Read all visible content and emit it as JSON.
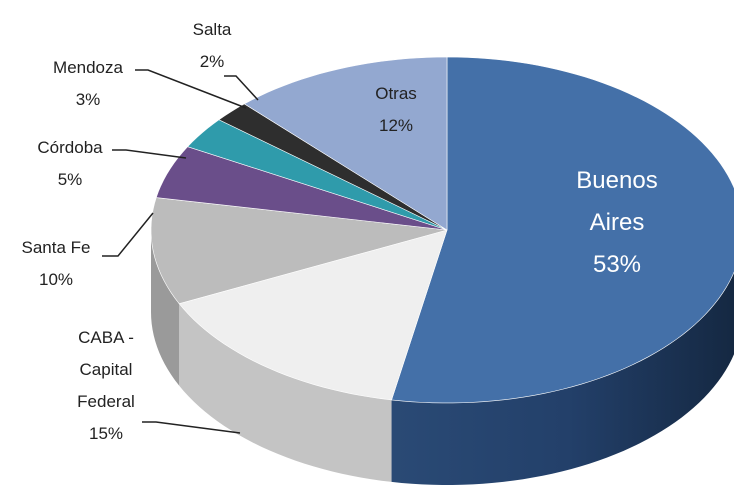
{
  "chart_data": {
    "type": "pie",
    "categories": [
      "Buenos Aires",
      "CABA - Capital Federal",
      "Santa Fe",
      "Córdoba",
      "Mendoza",
      "Salta",
      "Otras"
    ],
    "values": [
      53,
      15,
      10,
      5,
      3,
      2,
      12
    ],
    "value_labels": [
      "53%",
      "15%",
      "10%",
      "5%",
      "3%",
      "2%",
      "12%"
    ],
    "colors": [
      "#4470a8",
      "#efefef",
      "#bcbcbc",
      "#6a4e8a",
      "#2f9bab",
      "#2e2e2e",
      "#93a8d0"
    ]
  }
}
